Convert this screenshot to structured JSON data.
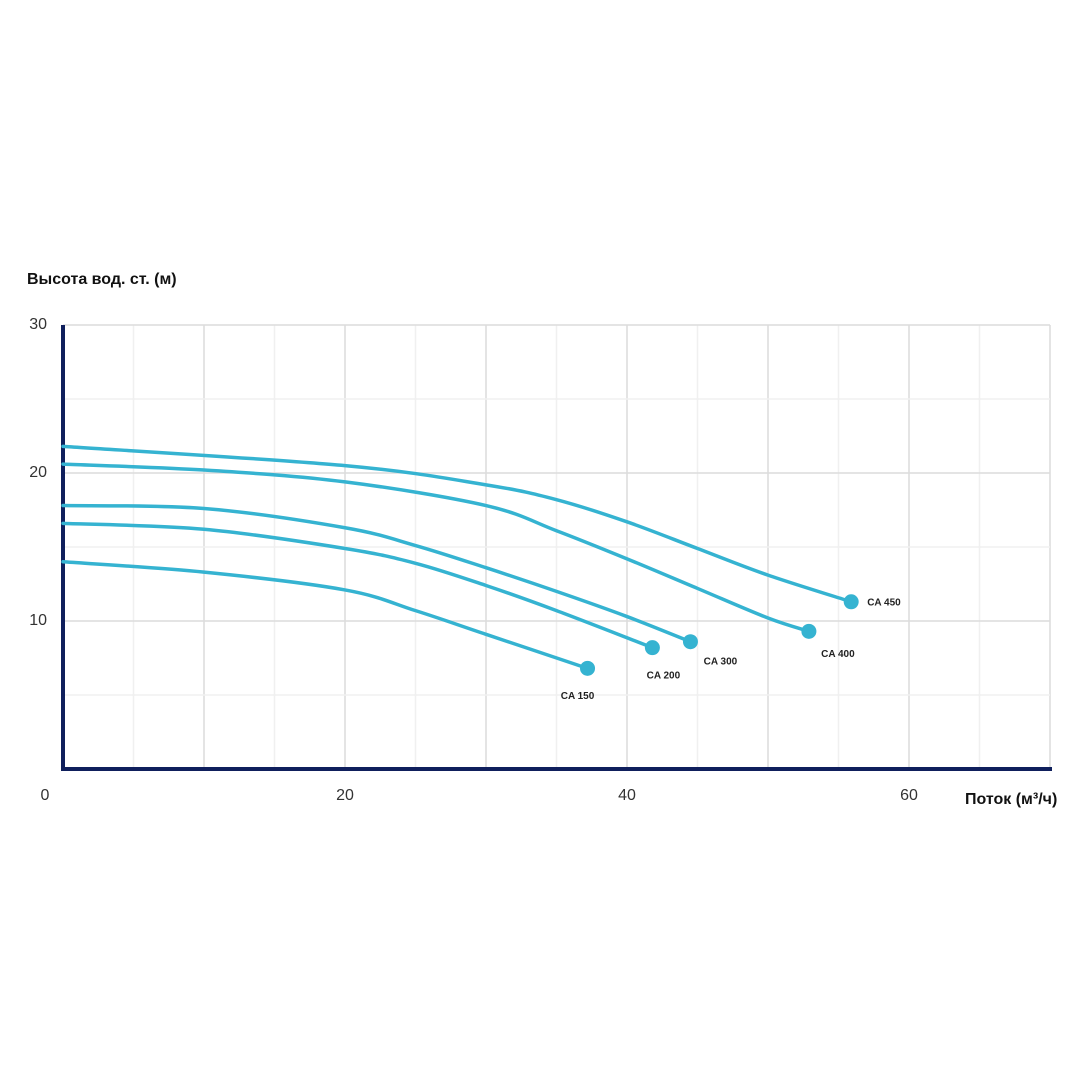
{
  "chart_data": {
    "type": "line",
    "y_label": "Высота вод. ст. (м)",
    "x_label": "Поток (м³/ч)",
    "xlim": [
      0,
      70
    ],
    "ylim": [
      0,
      30
    ],
    "xticks": [
      0,
      20,
      40,
      60
    ],
    "yticks": [
      10,
      20,
      30
    ],
    "x_gridlines": [
      5,
      10,
      15,
      20,
      25,
      30,
      35,
      40,
      45,
      50,
      55,
      60,
      65,
      70
    ],
    "y_gridlines": [
      5,
      10,
      15,
      20,
      25,
      30
    ],
    "grid": true,
    "axis_color": "#0f1f5c",
    "series": [
      {
        "name": "CA 450",
        "color": "#35b3d1",
        "x": [
          0,
          20,
          30,
          35,
          40,
          45,
          50,
          55.9
        ],
        "values": [
          21.8,
          20.5,
          19.2,
          18.2,
          16.7,
          14.9,
          13.1,
          11.3
        ]
      },
      {
        "name": "CA 400",
        "color": "#35b3d1",
        "x": [
          0,
          10,
          20,
          30,
          35,
          40,
          45,
          50,
          52.9
        ],
        "values": [
          20.6,
          20.2,
          19.4,
          17.8,
          16.1,
          14.2,
          12.2,
          10.2,
          9.3
        ]
      },
      {
        "name": "CA 300",
        "color": "#35b3d1",
        "x": [
          0,
          10,
          20,
          25,
          30,
          35,
          40,
          44.5
        ],
        "values": [
          17.8,
          17.6,
          16.3,
          15.1,
          13.6,
          12.0,
          10.3,
          8.6
        ]
      },
      {
        "name": "CA 200",
        "color": "#35b3d1",
        "x": [
          0,
          10,
          20,
          25,
          30,
          35,
          41.8
        ],
        "values": [
          16.6,
          16.2,
          14.9,
          13.9,
          12.4,
          10.7,
          8.2
        ]
      },
      {
        "name": "CA 150",
        "color": "#35b3d1",
        "x": [
          0,
          10,
          20,
          25,
          30,
          37.2
        ],
        "values": [
          14.0,
          13.3,
          12.1,
          10.7,
          9.1,
          6.8
        ]
      }
    ]
  }
}
